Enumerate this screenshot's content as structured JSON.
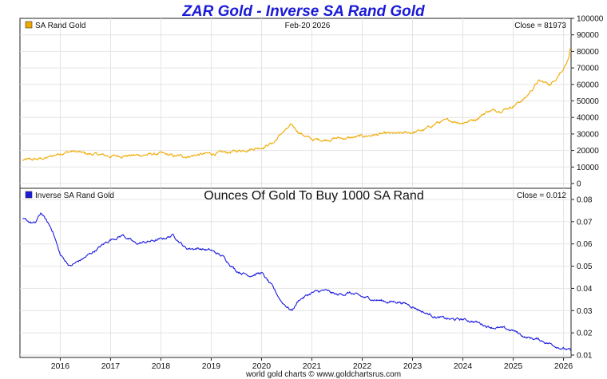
{
  "chart_data": [
    {
      "type": "line",
      "title": "ZAR Gold - Inverse SA Rand Gold",
      "date": "Feb-20  2026",
      "close_label": "Close = 81973",
      "legend": "SA Rand Gold",
      "color": "#f0aa00",
      "ylim": [
        0,
        100000
      ],
      "yticks": [
        "100000",
        "90000",
        "80000",
        "70000",
        "60000",
        "50000",
        "40000",
        "30000",
        "20000",
        "10000",
        "0"
      ],
      "tickvals": [
        100000,
        90000,
        80000,
        70000,
        60000,
        50000,
        40000,
        30000,
        20000,
        10000,
        0
      ],
      "x": [
        2015.25,
        2015.5,
        2015.75,
        2016.0,
        2016.25,
        2016.5,
        2016.75,
        2017.0,
        2017.25,
        2017.5,
        2017.75,
        2018.0,
        2018.25,
        2018.5,
        2018.75,
        2019.0,
        2019.25,
        2019.5,
        2019.75,
        2020.0,
        2020.25,
        2020.4,
        2020.6,
        2020.75,
        2021.0,
        2021.25,
        2021.5,
        2021.75,
        2022.0,
        2022.25,
        2022.5,
        2022.75,
        2023.0,
        2023.25,
        2023.5,
        2023.75,
        2024.0,
        2024.25,
        2024.5,
        2024.75,
        2025.0,
        2025.25,
        2025.5,
        2025.75,
        2025.9,
        2026.0,
        2026.1,
        2026.14
      ],
      "values": [
        14000,
        14500,
        15500,
        18500,
        19500,
        18000,
        17500,
        16500,
        17000,
        17000,
        17500,
        18000,
        16500,
        16500,
        17500,
        18000,
        18500,
        19500,
        21000,
        22000,
        25000,
        30500,
        35000,
        31000,
        26500,
        26500,
        27500,
        27500,
        28500,
        29500,
        30000,
        30000,
        31000,
        32500,
        37000,
        38000,
        37000,
        39000,
        44000,
        44500,
        47000,
        52000,
        62000,
        60000,
        66000,
        70000,
        76000,
        81973
      ]
    },
    {
      "type": "line",
      "title": "Ounces Of Gold To Buy 1000 SA Rand",
      "close_label": "Close = 0.012",
      "legend": "Inverse SA Rand Gold",
      "color": "#1c1ce0",
      "ylim": [
        0.01,
        0.08
      ],
      "yticks": [
        "0.08",
        "0.07",
        "0.06",
        "0.05",
        "0.04",
        "0.03",
        "0.02",
        "0.01"
      ],
      "tickvals": [
        0.08,
        0.07,
        0.06,
        0.05,
        0.04,
        0.03,
        0.02,
        0.01
      ],
      "x": [
        2015.25,
        2015.5,
        2015.62,
        2015.85,
        2016.0,
        2016.2,
        2016.5,
        2016.75,
        2017.0,
        2017.25,
        2017.5,
        2017.75,
        2018.0,
        2018.25,
        2018.5,
        2018.75,
        2019.0,
        2019.25,
        2019.5,
        2019.75,
        2020.0,
        2020.2,
        2020.4,
        2020.6,
        2020.75,
        2021.0,
        2021.25,
        2021.5,
        2021.75,
        2022.0,
        2022.25,
        2022.5,
        2022.75,
        2023.0,
        2023.25,
        2023.5,
        2023.75,
        2024.0,
        2024.25,
        2024.5,
        2024.75,
        2025.0,
        2025.25,
        2025.5,
        2025.75,
        2026.0,
        2026.14
      ],
      "values": [
        0.071,
        0.069,
        0.074,
        0.066,
        0.055,
        0.05,
        0.054,
        0.058,
        0.062,
        0.064,
        0.06,
        0.061,
        0.062,
        0.064,
        0.058,
        0.058,
        0.057,
        0.054,
        0.048,
        0.046,
        0.047,
        0.041,
        0.034,
        0.03,
        0.035,
        0.038,
        0.039,
        0.037,
        0.038,
        0.036,
        0.035,
        0.034,
        0.034,
        0.032,
        0.029,
        0.027,
        0.026,
        0.026,
        0.025,
        0.023,
        0.022,
        0.021,
        0.018,
        0.017,
        0.015,
        0.013,
        0.012
      ]
    }
  ],
  "x_ticks": [
    "2016",
    "2017",
    "2018",
    "2019",
    "2020",
    "2021",
    "2022",
    "2023",
    "2024",
    "2025",
    "2026"
  ],
  "x_tickvals": [
    2016,
    2017,
    2018,
    2019,
    2020,
    2021,
    2022,
    2023,
    2024,
    2025,
    2026
  ],
  "x_range": [
    2015.2,
    2026.15
  ],
  "footer": "world gold charts © www.goldchartsrus.com"
}
